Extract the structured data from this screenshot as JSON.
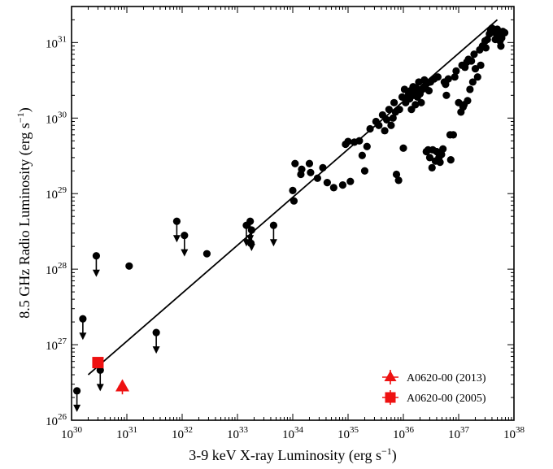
{
  "chart_data": {
    "type": "scatter",
    "xlabel_main": "3-9 keV X-ray Luminosity (erg s",
    "xlabel_sup": "−1",
    "xlabel_end": ")",
    "ylabel_main": "8.5 GHz Radio Luminosity (erg s",
    "ylabel_sup": "−1",
    "ylabel_end": ")",
    "x_scale": "log",
    "y_scale": "log",
    "xlim": [
      1e+30,
      1e+38
    ],
    "ylim": [
      1e+26,
      3e+31
    ],
    "x_ticks": [
      {
        "base": "10",
        "exp": "30",
        "value": 1e+30
      },
      {
        "base": "10",
        "exp": "31",
        "value": 1e+31
      },
      {
        "base": "10",
        "exp": "32",
        "value": 1e+32
      },
      {
        "base": "10",
        "exp": "33",
        "value": 1e+33
      },
      {
        "base": "10",
        "exp": "34",
        "value": 1e+34
      },
      {
        "base": "10",
        "exp": "35",
        "value": 1e+35
      },
      {
        "base": "10",
        "exp": "36",
        "value": 1e+36
      },
      {
        "base": "10",
        "exp": "37",
        "value": 1e+37
      },
      {
        "base": "10",
        "exp": "38",
        "value": 1e+38
      }
    ],
    "y_ticks": [
      {
        "base": "10",
        "exp": "26",
        "value": 1e+26
      },
      {
        "base": "10",
        "exp": "27",
        "value": 1e+27
      },
      {
        "base": "10",
        "exp": "28",
        "value": 1e+28
      },
      {
        "base": "10",
        "exp": "29",
        "value": 1e+29
      },
      {
        "base": "10",
        "exp": "30",
        "value": 1e+30
      },
      {
        "base": "10",
        "exp": "31",
        "value": 1e+31
      }
    ],
    "grid": false,
    "legend_position": "bottom-right",
    "fit_line": {
      "x": [
        2e+30,
        5e+37
      ],
      "y": [
        4e+26,
        2e+31
      ]
    },
    "series": [
      {
        "color": "#000000",
        "marker": "circle",
        "points": [
          [
            1.1e+31,
            1.1e+28
          ],
          [
            2.8e+32,
            1.6e+28
          ],
          [
            1.75e+33,
            2.2e+28
          ],
          [
            1e+34,
            1.1e+29
          ],
          [
            1.05e+34,
            8e+28
          ],
          [
            1.1e+34,
            2.5e+29
          ],
          [
            1.4e+34,
            1.8e+29
          ],
          [
            1.45e+34,
            2.1e+29
          ],
          [
            2e+34,
            2.5e+29
          ],
          [
            2.1e+34,
            1.9e+29
          ],
          [
            2.8e+34,
            1.6e+29
          ],
          [
            3.5e+34,
            2.2e+29
          ],
          [
            4.2e+34,
            1.4e+29
          ],
          [
            5.5e+34,
            1.2e+29
          ],
          [
            8e+34,
            1.3e+29
          ],
          [
            1.1e+35,
            1.45e+29
          ],
          [
            1.3e+35,
            4.8e+29
          ],
          [
            1.6e+35,
            5e+29
          ],
          [
            1.8e+35,
            3.2e+29
          ],
          [
            2e+35,
            2e+29
          ],
          [
            2.2e+35,
            4.2e+29
          ],
          [
            9e+34,
            4.5e+29
          ],
          [
            1e+35,
            4.9e+29
          ],
          [
            2.5e+35,
            7.2e+29
          ],
          [
            3.2e+35,
            9e+29
          ],
          [
            3.6e+35,
            8e+29
          ],
          [
            4.2e+35,
            1.1e+30
          ],
          [
            4.6e+35,
            6.8e+29
          ],
          [
            5e+35,
            9.5e+29
          ],
          [
            5.5e+35,
            1.3e+30
          ],
          [
            6e+35,
            8e+29
          ],
          [
            6.5e+35,
            1e+30
          ],
          [
            6.8e+35,
            1.6e+30
          ],
          [
            7.2e+35,
            1.2e+30
          ],
          [
            7.5e+35,
            1.8e+29
          ],
          [
            8.2e+35,
            1.5e+29
          ],
          [
            8.5e+35,
            1.3e+30
          ],
          [
            9.5e+35,
            1.9e+30
          ],
          [
            1e+36,
            4e+29
          ],
          [
            1.05e+36,
            2.4e+30
          ],
          [
            1.1e+36,
            1.6e+30
          ],
          [
            1.2e+36,
            1.9e+30
          ],
          [
            1.25e+36,
            2.1e+30
          ],
          [
            1.3e+36,
            1.8e+30
          ],
          [
            1.35e+36,
            2.3e+30
          ],
          [
            1.4e+36,
            1.3e+30
          ],
          [
            1.5e+36,
            2.6e+30
          ],
          [
            1.55e+36,
            2e+30
          ],
          [
            1.6e+36,
            2.2e+30
          ],
          [
            1.65e+36,
            1.5e+30
          ],
          [
            1.7e+36,
            2.5e+30
          ],
          [
            1.8e+36,
            1.9e+30
          ],
          [
            1.9e+36,
            3e+30
          ],
          [
            2e+36,
            2.1e+30
          ],
          [
            2.1e+36,
            1.6e+30
          ],
          [
            2.2e+36,
            2.4e+30
          ],
          [
            2.4e+36,
            3.2e+30
          ],
          [
            2.5e+36,
            2.7e+30
          ],
          [
            2.6e+36,
            3.6e+29
          ],
          [
            2.7e+36,
            2.9e+30
          ],
          [
            2.8e+36,
            3.8e+29
          ],
          [
            2.9e+36,
            2.3e+30
          ],
          [
            3e+36,
            3e+29
          ],
          [
            3.1e+36,
            3e+30
          ],
          [
            3.3e+36,
            2.2e+29
          ],
          [
            3.4e+36,
            3.8e+29
          ],
          [
            3.6e+36,
            3.3e+30
          ],
          [
            3.8e+36,
            2.7e+29
          ],
          [
            4e+36,
            3.6e+29
          ],
          [
            4.2e+36,
            3.5e+30
          ],
          [
            4.4e+36,
            3e+29
          ],
          [
            4.6e+36,
            2.6e+29
          ],
          [
            4.9e+36,
            3.3e+29
          ],
          [
            5.2e+36,
            3.9e+29
          ],
          [
            5.5e+36,
            3e+30
          ],
          [
            5.8e+36,
            2.8e+30
          ],
          [
            6e+36,
            2e+30
          ],
          [
            6.5e+36,
            3.3e+30
          ],
          [
            7e+36,
            6e+29
          ],
          [
            7.2e+36,
            2.8e+29
          ],
          [
            8e+36,
            6e+29
          ],
          [
            8.5e+36,
            3.5e+30
          ],
          [
            9e+36,
            4.2e+30
          ],
          [
            1e+37,
            1.6e+30
          ],
          [
            1.1e+37,
            1.2e+30
          ],
          [
            1.15e+37,
            5e+30
          ],
          [
            1.2e+37,
            1.4e+30
          ],
          [
            1.25e+37,
            1.5e+30
          ],
          [
            1.3e+37,
            4.7e+30
          ],
          [
            1.4e+37,
            5.5e+30
          ],
          [
            1.45e+37,
            1.7e+30
          ],
          [
            1.5e+37,
            6e+30
          ],
          [
            1.6e+37,
            2.4e+30
          ],
          [
            1.7e+37,
            5.7e+30
          ],
          [
            1.8e+37,
            3e+30
          ],
          [
            1.9e+37,
            7e+30
          ],
          [
            2e+37,
            4.5e+30
          ],
          [
            2.2e+37,
            3.5e+30
          ],
          [
            2.4e+37,
            8e+30
          ],
          [
            2.5e+37,
            5e+30
          ],
          [
            2.7e+37,
            9e+30
          ],
          [
            3e+37,
            1.05e+31
          ],
          [
            3.1e+37,
            8.5e+30
          ],
          [
            3.3e+37,
            1.1e+31
          ],
          [
            3.6e+37,
            1.3e+31
          ],
          [
            3.8e+37,
            1.45e+31
          ],
          [
            4e+37,
            1.55e+31
          ],
          [
            4.2e+37,
            1.5e+31
          ],
          [
            4.4e+37,
            1.4e+31
          ],
          [
            4.6e+37,
            1.1e+31
          ],
          [
            4.8e+37,
            1.3e+31
          ],
          [
            5e+37,
            1.5e+31
          ],
          [
            5.3e+37,
            1.2e+31
          ],
          [
            5.6e+37,
            1.05e+31
          ],
          [
            5.8e+37,
            9e+30
          ],
          [
            6e+37,
            1.15e+31
          ],
          [
            6.3e+37,
            1.4e+31
          ],
          [
            6.8e+37,
            1.35e+31
          ]
        ]
      },
      {
        "color": "#000000",
        "marker": "circle-upper-limit",
        "points": [
          [
            1.25e+30,
            2.45e+26
          ],
          [
            1.6e+30,
            2.2e+27
          ],
          [
            2.8e+30,
            1.5e+28
          ],
          [
            3.3e+30,
            4.6e+26
          ],
          [
            3.4e+31,
            1.45e+27
          ],
          [
            8e+31,
            4.3e+28
          ],
          [
            1.1e+32,
            2.8e+28
          ],
          [
            1.45e+33,
            3.8e+28
          ],
          [
            1.7e+33,
            4.3e+28
          ],
          [
            1.8e+33,
            3.3e+28
          ],
          [
            4.5e+33,
            3.8e+28
          ]
        ]
      },
      {
        "name": "A0620-00 (2013)",
        "color": "#ee1111",
        "marker": "triangle",
        "points": [
          [
            8.3e+30,
            2.8e+26
          ]
        ],
        "y_err": [
          [
            2.2e+26,
            3.4e+26
          ]
        ],
        "x_err": [
          [
            7e+30,
            9.6e+30
          ]
        ]
      },
      {
        "name": "A0620-00 (2005)",
        "color": "#ee1111",
        "marker": "square",
        "points": [
          [
            3e+30,
            5.8e+26
          ]
        ],
        "y_err": [
          [
            5e+26,
            6.6e+26
          ]
        ],
        "x_err": [
          [
            2.5e+30,
            3.5e+30
          ]
        ]
      }
    ]
  }
}
